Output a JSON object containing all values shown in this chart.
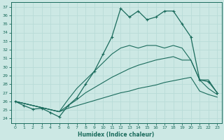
{
  "xlabel": "Humidex (Indice chaleur)",
  "xlim": [
    -0.5,
    23.5
  ],
  "ylim": [
    23.5,
    37.5
  ],
  "yticks": [
    24,
    25,
    26,
    27,
    28,
    29,
    30,
    31,
    32,
    33,
    34,
    35,
    36,
    37
  ],
  "xticks": [
    0,
    1,
    2,
    3,
    4,
    5,
    6,
    7,
    8,
    9,
    10,
    11,
    12,
    13,
    14,
    15,
    16,
    17,
    18,
    19,
    20,
    21,
    22,
    23
  ],
  "bg_color": "#cce8e4",
  "line_color": "#1a6b5c",
  "grid_color": "#b8dbd7",
  "line1_x": [
    0,
    1,
    2,
    3,
    4,
    5,
    6,
    7,
    8,
    9,
    10,
    11,
    12,
    13,
    14,
    15,
    16,
    17,
    18,
    19,
    20,
    21,
    22,
    23
  ],
  "line1_y": [
    26,
    25.5,
    25.1,
    25.2,
    24.7,
    24.2,
    25.5,
    26.4,
    28.0,
    29.5,
    31.5,
    33.5,
    36.8,
    35.8,
    36.5,
    35.5,
    35.8,
    36.5,
    36.5,
    35.0,
    33.5,
    28.5,
    28.3,
    27.0
  ],
  "line2_x": [
    0,
    5,
    6,
    7,
    8,
    9,
    10,
    11,
    12,
    13,
    14,
    15,
    16,
    17,
    18,
    19,
    20,
    21,
    22,
    23
  ],
  "line2_y": [
    26,
    24.8,
    26.2,
    27.5,
    28.5,
    29.5,
    30.5,
    31.5,
    32.2,
    32.5,
    32.2,
    32.5,
    32.5,
    32.2,
    32.5,
    32.2,
    30.8,
    28.5,
    28.5,
    27.0
  ],
  "line3_x": [
    0,
    5,
    6,
    7,
    8,
    9,
    10,
    11,
    12,
    13,
    14,
    15,
    16,
    17,
    18,
    19,
    20,
    21,
    22,
    23
  ],
  "line3_y": [
    26,
    24.8,
    25.5,
    26.2,
    27.0,
    27.6,
    28.2,
    28.8,
    29.3,
    29.8,
    30.2,
    30.5,
    30.8,
    31.0,
    31.2,
    30.8,
    30.8,
    28.5,
    27.5,
    26.8
  ],
  "line4_x": [
    0,
    5,
    6,
    7,
    8,
    9,
    10,
    11,
    12,
    13,
    14,
    15,
    16,
    17,
    18,
    19,
    20,
    21,
    22,
    23
  ],
  "line4_y": [
    26,
    24.8,
    25.2,
    25.5,
    25.8,
    26.1,
    26.4,
    26.7,
    27.0,
    27.2,
    27.5,
    27.7,
    27.9,
    28.2,
    28.4,
    28.6,
    28.8,
    27.2,
    26.8,
    26.5
  ]
}
